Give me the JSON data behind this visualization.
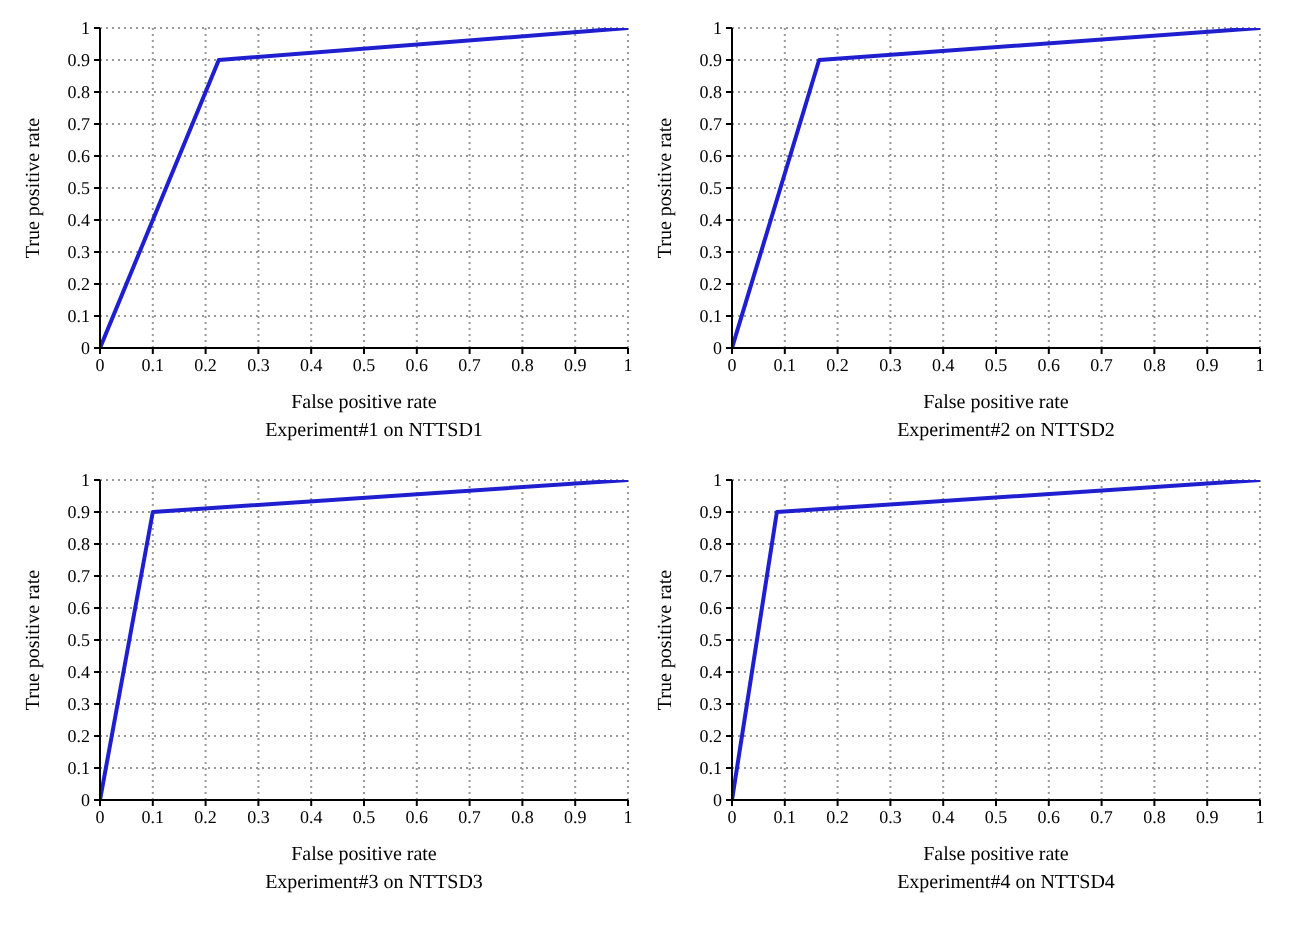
{
  "chart_data": [
    {
      "type": "line",
      "xlabel": "False positive rate",
      "ylabel": "True positive rate",
      "annotations": [
        "Experiment#1 on NTTSD1"
      ],
      "x": [
        0,
        0.225,
        1
      ],
      "series": [
        {
          "color": "#1f1fd0",
          "values": [
            0,
            0.9,
            1
          ]
        }
      ],
      "xlim": [
        0,
        1
      ],
      "ylim": [
        0,
        1
      ],
      "xticks": [
        0,
        0.1,
        0.2,
        0.3,
        0.4,
        0.5,
        0.6,
        0.7,
        0.8,
        0.9,
        1
      ],
      "yticks": [
        0,
        0.1,
        0.2,
        0.3,
        0.4,
        0.5,
        0.6,
        0.7,
        0.8,
        0.9,
        1
      ],
      "grid": true,
      "legend": false,
      "marker": "none",
      "line_style": "solid"
    },
    {
      "type": "line",
      "xlabel": "False positive rate",
      "ylabel": "True positive rate",
      "annotations": [
        "Experiment#2 on NTTSD2"
      ],
      "x": [
        0,
        0.165,
        1
      ],
      "series": [
        {
          "color": "#1f1fd0",
          "values": [
            0,
            0.9,
            1
          ]
        }
      ],
      "xlim": [
        0,
        1
      ],
      "ylim": [
        0,
        1
      ],
      "xticks": [
        0,
        0.1,
        0.2,
        0.3,
        0.4,
        0.5,
        0.6,
        0.7,
        0.8,
        0.9,
        1
      ],
      "yticks": [
        0,
        0.1,
        0.2,
        0.3,
        0.4,
        0.5,
        0.6,
        0.7,
        0.8,
        0.9,
        1
      ],
      "grid": true,
      "legend": false,
      "marker": "none",
      "line_style": "solid"
    },
    {
      "type": "line",
      "xlabel": "False positive rate",
      "ylabel": "True positive rate",
      "annotations": [
        "Experiment#3 on NTTSD3"
      ],
      "x": [
        0,
        0.1,
        1
      ],
      "series": [
        {
          "color": "#1f1fd0",
          "values": [
            0,
            0.9,
            1
          ]
        }
      ],
      "xlim": [
        0,
        1
      ],
      "ylim": [
        0,
        1
      ],
      "xticks": [
        0,
        0.1,
        0.2,
        0.3,
        0.4,
        0.5,
        0.6,
        0.7,
        0.8,
        0.9,
        1
      ],
      "yticks": [
        0,
        0.1,
        0.2,
        0.3,
        0.4,
        0.5,
        0.6,
        0.7,
        0.8,
        0.9,
        1
      ],
      "grid": true,
      "legend": false,
      "marker": "none",
      "line_style": "solid"
    },
    {
      "type": "line",
      "xlabel": "False positive rate",
      "ylabel": "True positive rate",
      "annotations": [
        "Experiment#4 on NTTSD4"
      ],
      "x": [
        0,
        0.085,
        1
      ],
      "series": [
        {
          "color": "#1f1fd0",
          "values": [
            0,
            0.9,
            1
          ]
        }
      ],
      "xlim": [
        0,
        1
      ],
      "ylim": [
        0,
        1
      ],
      "xticks": [
        0,
        0.1,
        0.2,
        0.3,
        0.4,
        0.5,
        0.6,
        0.7,
        0.8,
        0.9,
        1
      ],
      "yticks": [
        0,
        0.1,
        0.2,
        0.3,
        0.4,
        0.5,
        0.6,
        0.7,
        0.8,
        0.9,
        1
      ],
      "grid": true,
      "legend": false,
      "marker": "none",
      "line_style": "solid"
    }
  ]
}
